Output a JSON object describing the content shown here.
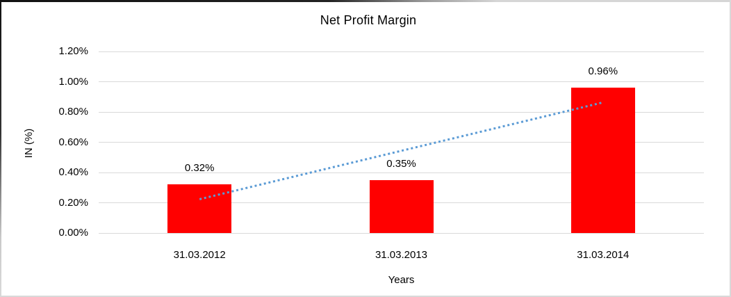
{
  "chart_data": {
    "type": "bar",
    "title": "Net Profit Margin",
    "categories": [
      "31.03.2012",
      "31.03.2013",
      "31.03.2014"
    ],
    "values": [
      0.32,
      0.35,
      0.96
    ],
    "data_labels": [
      "0.32%",
      "0.35%",
      "0.96%"
    ],
    "xlabel": "Years",
    "ylabel": "IN (%)",
    "ylim": [
      0,
      1.2
    ],
    "ytick_step": 0.2,
    "ytick_labels": [
      "0.00%",
      "0.20%",
      "0.40%",
      "0.60%",
      "0.80%",
      "1.00%",
      "1.20%"
    ],
    "grid": true,
    "legend": "none",
    "bar_color": "#FF0000",
    "gridline_color": "#D9D9D9",
    "text_color": "#000000",
    "trendline": {
      "type": "linear",
      "style": "dotted",
      "color": "#5B9BD5"
    }
  }
}
